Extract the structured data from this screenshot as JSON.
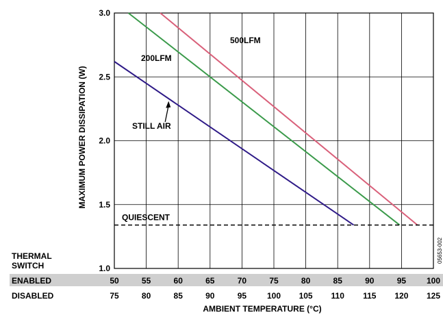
{
  "chart_data": {
    "type": "line",
    "title": "",
    "xlabel": "AMBIENT TEMPERATURE (°C)",
    "ylabel": "MAXIMUM POWER DISSIPATION (W)",
    "ylim": [
      1.0,
      3.0
    ],
    "xlim": [
      50,
      100
    ],
    "yticks": [
      "1.0",
      "1.5",
      "2.0",
      "2.5",
      "3.0"
    ],
    "grid": true,
    "x_rows": {
      "header_label": "THERMAL SWITCH",
      "enabled_label": "ENABLED",
      "disabled_label": "DISABLED",
      "enabled_values": [
        "50",
        "55",
        "60",
        "65",
        "70",
        "75",
        "80",
        "85",
        "90",
        "95",
        "100"
      ],
      "disabled_values": [
        "75",
        "80",
        "85",
        "90",
        "95",
        "100",
        "105",
        "110",
        "115",
        "120",
        "125"
      ]
    },
    "series": [
      {
        "name": "STILL AIR",
        "color": "#2e1a87",
        "x": [
          50,
          87.5
        ],
        "y": [
          2.62,
          1.34
        ]
      },
      {
        "name": "200LFM",
        "color": "#3a9a4a",
        "x": [
          52.2,
          94.7
        ],
        "y": [
          3.0,
          1.34
        ]
      },
      {
        "name": "500LFM",
        "color": "#d9607a",
        "x": [
          57.2,
          97.5
        ],
        "y": [
          3.0,
          1.34
        ]
      }
    ],
    "annotations": [
      {
        "text": "QUIESCENT",
        "type": "hline",
        "y": 1.34
      },
      {
        "text": "STILL AIR",
        "arrow_to": [
          58.5,
          2.31
        ]
      },
      {
        "text": "200LFM"
      },
      {
        "text": "500LFM"
      }
    ],
    "figure_id": "05653-002"
  }
}
